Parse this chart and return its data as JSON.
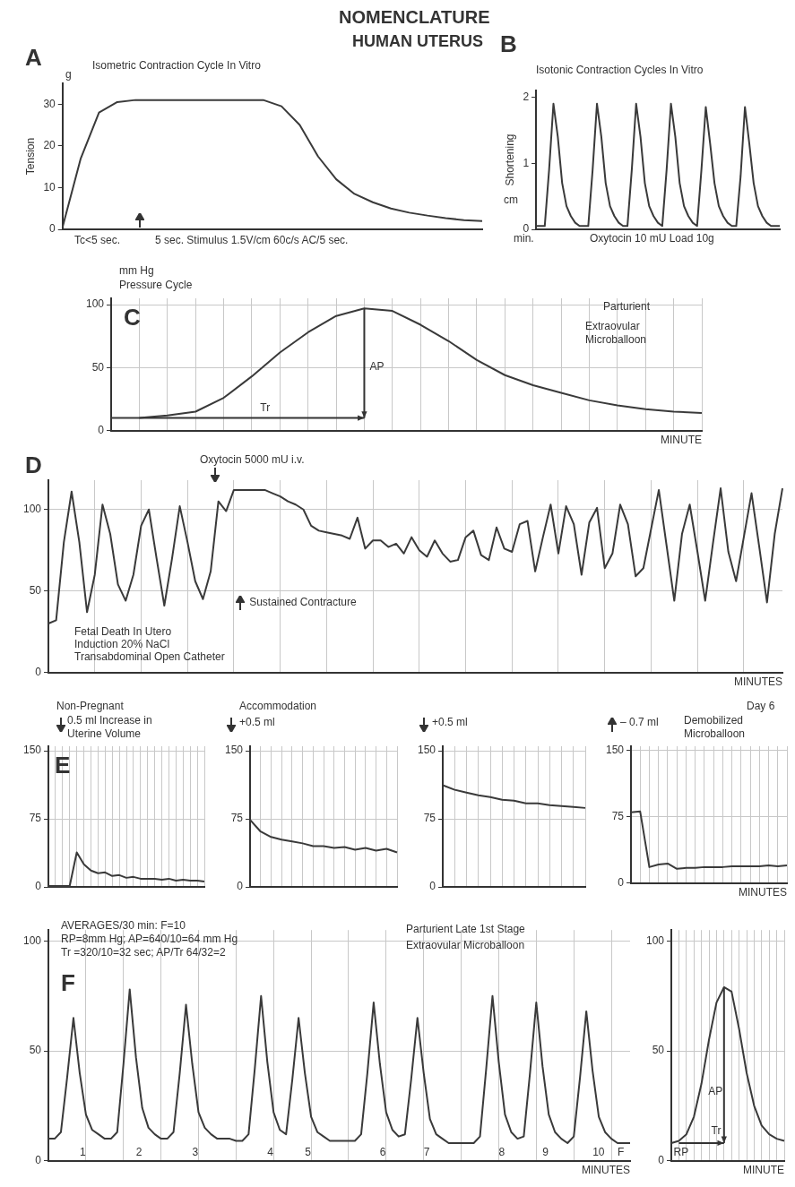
{
  "chart_data": [
    {
      "type": "line",
      "title": "Isometric Contraction Cycle In Vitro",
      "ylabel": "Tension",
      "annotations": [
        "NOMENCLATURE",
        "HUMAN UTERUS",
        "A",
        "g",
        "Tc<5 sec.",
        "5 sec. Stimulus 1.5V/cm 60c/s AC/5 sec."
      ],
      "categories": [
        null,
        null,
        null,
        null,
        null,
        null,
        null,
        null,
        null,
        null,
        null,
        null,
        null,
        null,
        null,
        null,
        null,
        null,
        null,
        null,
        null,
        null,
        null,
        null
      ],
      "values": [
        0.5,
        17,
        28,
        30.5,
        31,
        31,
        31,
        31,
        31,
        31,
        31,
        31,
        29.5,
        25,
        17.5,
        12,
        8.5,
        6.5,
        5,
        4,
        3.3,
        2.7,
        2.2,
        2
      ],
      "color": "#3a3a3a",
      "ylim": [
        0,
        35
      ],
      "yticks": [
        0,
        10,
        20,
        30
      ],
      "grid": false
    },
    {
      "type": "line",
      "title": "Isotonic Contraction Cycles In Vitro",
      "ylabel": "Shortening",
      "annotations": [
        "B",
        "cm",
        "min.",
        "Oxytocin 10 mU Load 10g"
      ],
      "categories": [
        null,
        null,
        null,
        null,
        null,
        null,
        null,
        null,
        null,
        null,
        null,
        null,
        null,
        null,
        null,
        null,
        null,
        null,
        null,
        null,
        null,
        null,
        null,
        null,
        null,
        null,
        null,
        null,
        null,
        null,
        null,
        null,
        null,
        null,
        null,
        null,
        null,
        null,
        null,
        null,
        null,
        null,
        null,
        null,
        null,
        null,
        null,
        null,
        null,
        null,
        null,
        null,
        null,
        null,
        null,
        null,
        null
      ],
      "values": [
        0.05,
        0.05,
        0.05,
        0.9,
        1.9,
        1.4,
        0.7,
        0.35,
        0.2,
        0.1,
        0.05,
        0.05,
        0.05,
        0.9,
        1.9,
        1.4,
        0.7,
        0.35,
        0.2,
        0.1,
        0.05,
        0.05,
        0.9,
        1.9,
        1.4,
        0.7,
        0.35,
        0.2,
        0.1,
        0.05,
        0.9,
        1.9,
        1.4,
        0.7,
        0.35,
        0.2,
        0.1,
        0.05,
        0.9,
        1.85,
        1.3,
        0.7,
        0.35,
        0.2,
        0.1,
        0.05,
        0.05,
        0.8,
        1.85,
        1.3,
        0.7,
        0.35,
        0.2,
        0.1,
        0.05,
        0.05,
        0.05
      ],
      "color": "#3a3a3a",
      "ylim": [
        0,
        2.1
      ],
      "yticks": [
        0,
        1,
        2
      ],
      "grid": false
    },
    {
      "type": "line",
      "title": "Pressure Cycle",
      "xlabel": "MINUTE",
      "annotations": [
        "mm Hg",
        "C",
        "Parturient",
        "Extraovular Microballoon",
        "AP",
        "Tr"
      ],
      "categories": [
        null,
        null,
        null,
        null,
        null,
        null,
        null,
        null,
        null,
        null,
        null,
        null,
        null,
        null,
        null,
        null,
        null,
        null,
        null,
        null,
        null,
        null
      ],
      "values": [
        10,
        10,
        12,
        15,
        26,
        43,
        62,
        78,
        91,
        97,
        95,
        84,
        71,
        56,
        44,
        36,
        30,
        24,
        20,
        17,
        15,
        14
      ],
      "color": "#3a3a3a",
      "ylim": [
        0,
        105
      ],
      "yticks": [
        0,
        50,
        100
      ],
      "grid": true
    },
    {
      "type": "line",
      "xlabel": "MINUTES",
      "annotations": [
        "D",
        "Oxytocin 5000 mU i.v.",
        "Sustained Contracture",
        "Fetal Death In Utero",
        "Induction 20% NaCl",
        "Transabdominal Open Catheter"
      ],
      "categories": [
        null,
        null,
        null,
        null,
        null,
        null,
        null,
        null,
        null,
        null,
        null,
        null,
        null,
        null,
        null,
        null,
        null,
        null,
        null,
        null,
        null,
        null,
        null,
        null,
        null,
        null,
        null,
        null,
        null,
        null,
        null,
        null,
        null,
        null,
        null,
        null,
        null,
        null,
        null,
        null,
        null,
        null,
        null,
        null,
        null,
        null,
        null,
        null,
        null,
        null,
        null,
        null,
        null,
        null,
        null,
        null,
        null,
        null,
        null,
        null,
        null,
        null,
        null,
        null,
        null,
        null,
        null,
        null,
        null,
        null,
        null,
        null,
        null,
        null,
        null,
        null,
        null,
        null,
        null,
        null,
        null,
        null,
        null,
        null,
        null,
        null,
        null,
        null,
        null,
        null,
        null,
        null,
        null,
        null,
        null,
        null
      ],
      "values": [
        30,
        32,
        80,
        111,
        80,
        37,
        60,
        103,
        85,
        54,
        44,
        60,
        90,
        100,
        70,
        41,
        70,
        102,
        80,
        56,
        45,
        62,
        105,
        99,
        112,
        112,
        112,
        112,
        112,
        110,
        108,
        105,
        103,
        100,
        90,
        87,
        86,
        85,
        84,
        82,
        95,
        76,
        81,
        81,
        77,
        79,
        73,
        83,
        75,
        71,
        81,
        73,
        68,
        69,
        83,
        87,
        72,
        69,
        89,
        76,
        74,
        91,
        93,
        62,
        83,
        103,
        73,
        102,
        91,
        60,
        92,
        101,
        64,
        73,
        103,
        91,
        59,
        64,
        88,
        112,
        78,
        44,
        85,
        103,
        74,
        44,
        79,
        113,
        74,
        56,
        83,
        110,
        77,
        43,
        85,
        113
      ],
      "color": "#3a3a3a",
      "ylim": [
        0,
        118
      ],
      "yticks": [
        0,
        50,
        100
      ],
      "grid": true
    },
    {
      "type": "line",
      "title": "Non-Pregnant",
      "annotations": [
        "E",
        "0.5 ml Increase in Uterine Volume"
      ],
      "categories": [
        null,
        null,
        null,
        null,
        null,
        null,
        null,
        null,
        null,
        null,
        null,
        null,
        null,
        null,
        null,
        null,
        null,
        null,
        null,
        null,
        null,
        null,
        null
      ],
      "values": [
        1,
        1,
        1,
        1,
        38,
        25,
        18,
        15,
        16,
        12,
        13,
        10,
        11,
        9,
        9,
        9,
        8,
        9,
        7,
        8,
        7,
        7,
        6
      ],
      "color": "#3a3a3a",
      "ylim": [
        0,
        155
      ],
      "yticks": [
        0,
        75,
        150
      ],
      "grid": true,
      "tick_labels": "y"
    },
    {
      "type": "line",
      "title": "Accommodation",
      "annotations": [
        "+0.5 ml"
      ],
      "categories": [
        null,
        null,
        null,
        null,
        null,
        null,
        null,
        null,
        null,
        null,
        null,
        null,
        null,
        null,
        null
      ],
      "values": [
        74,
        61,
        55,
        52,
        50,
        48,
        45,
        45,
        43,
        44,
        41,
        43,
        40,
        42,
        38
      ],
      "color": "#3a3a3a",
      "ylim": [
        0,
        155
      ],
      "yticks": [
        0,
        75,
        150
      ],
      "grid": true
    },
    {
      "type": "line",
      "annotations": [
        "+0.5 ml"
      ],
      "categories": [
        null,
        null,
        null,
        null,
        null,
        null,
        null,
        null,
        null,
        null,
        null,
        null,
        null
      ],
      "values": [
        112,
        107,
        104,
        101,
        99,
        96,
        95,
        92,
        92,
        90,
        89,
        88,
        87
      ],
      "color": "#3a3a3a",
      "ylim": [
        0,
        155
      ],
      "yticks": [
        0,
        75,
        150
      ],
      "grid": true
    },
    {
      "type": "line",
      "title": "Day 6",
      "xlabel": "MINUTES",
      "annotations": [
        "– 0.7 ml",
        "Demobilized Microballoon"
      ],
      "categories": [
        null,
        null,
        null,
        null,
        null,
        null,
        null,
        null,
        null,
        null,
        null,
        null,
        null,
        null,
        null,
        null,
        null,
        null
      ],
      "values": [
        80,
        81,
        18,
        21,
        22,
        16,
        17,
        17,
        18,
        18,
        18,
        19,
        19,
        19,
        19,
        20,
        19,
        20
      ],
      "color": "#3a3a3a",
      "ylim": [
        0,
        155
      ],
      "yticks": [
        0,
        75,
        150
      ],
      "grid": true
    },
    {
      "type": "line",
      "xlabel": "MINUTES",
      "annotations": [
        "F",
        "AVERAGES/30 min: F=10",
        "RP=8mm Hg; AP=640/10=64 mm Hg",
        "Tr =320/10=32 sec; AP/Tr 64/32=2",
        "Parturient Late 1st Stage",
        "Extraovular Microballoon",
        "1",
        "2",
        "3",
        "4",
        "5",
        "6",
        "7",
        "8",
        "9",
        "10",
        "F"
      ],
      "categories": [
        null,
        null,
        null,
        null,
        null,
        null,
        null,
        null,
        null,
        null,
        null,
        null,
        null,
        null,
        null,
        null,
        null,
        null,
        null,
        null,
        null,
        null,
        null,
        null,
        null,
        null,
        null,
        null,
        null,
        null,
        null,
        null,
        null,
        null,
        null,
        null,
        null,
        null,
        null,
        null,
        null,
        null,
        null,
        null,
        null,
        null,
        null,
        null,
        null,
        null,
        null,
        null,
        null,
        null,
        null,
        null,
        null,
        null,
        null,
        null,
        null,
        null,
        null,
        null,
        null,
        null,
        null,
        null,
        null,
        null,
        null,
        null,
        null,
        null,
        null,
        null,
        null,
        null,
        null,
        null,
        null,
        null,
        null,
        null,
        null,
        null,
        null,
        null,
        null,
        null,
        null,
        null,
        null,
        null
      ],
      "values": [
        10,
        10,
        13,
        38,
        65,
        40,
        21,
        14,
        12,
        10,
        10,
        13,
        44,
        78,
        47,
        24,
        15,
        12,
        10,
        10,
        13,
        40,
        71,
        44,
        22,
        15,
        12,
        10,
        10,
        10,
        9,
        9,
        12,
        42,
        75,
        45,
        22,
        14,
        12,
        37,
        65,
        40,
        20,
        13,
        11,
        9,
        9,
        9,
        9,
        9,
        12,
        40,
        72,
        44,
        22,
        14,
        11,
        12,
        37,
        65,
        40,
        19,
        12,
        10,
        8,
        8,
        8,
        8,
        8,
        11,
        42,
        75,
        45,
        21,
        13,
        10,
        11,
        40,
        72,
        43,
        21,
        13,
        10,
        8,
        11,
        38,
        68,
        41,
        20,
        13,
        10,
        8,
        8,
        8
      ],
      "color": "#3a3a3a",
      "ylim": [
        0,
        105
      ],
      "yticks": [
        0,
        50,
        100
      ],
      "grid": true
    },
    {
      "type": "line",
      "xlabel": "MINUTE",
      "annotations": [
        "AP",
        "Tr",
        "RP"
      ],
      "categories": [
        null,
        null,
        null,
        null,
        null,
        null,
        null,
        null,
        null,
        null,
        null,
        null,
        null,
        null,
        null,
        null
      ],
      "values": [
        8,
        9,
        12,
        20,
        35,
        55,
        72,
        79,
        77,
        60,
        40,
        25,
        16,
        12,
        10,
        9
      ],
      "color": "#3a3a3a",
      "ylim": [
        0,
        105
      ],
      "yticks": [
        0,
        50,
        100
      ],
      "grid": true
    }
  ]
}
